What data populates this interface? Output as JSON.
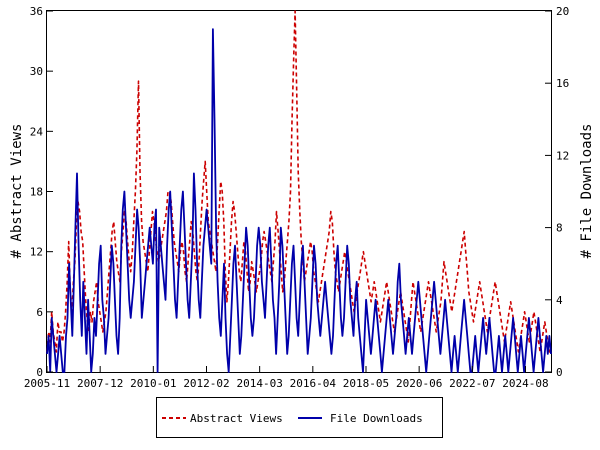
{
  "chart_data": {
    "type": "line",
    "title": "",
    "xlabel": "",
    "ylabel_left": "# Abstract Views",
    "ylabel_right": "# File Downloads",
    "x_tick_labels": [
      "2005-11",
      "2007-12",
      "2010-01",
      "2012-02",
      "2014-03",
      "2016-04",
      "2018-05",
      "2020-06",
      "2022-07",
      "2024-08"
    ],
    "x_range": [
      "2005-11",
      "2025-08"
    ],
    "y_left": {
      "ylim": [
        0,
        36
      ],
      "ticks": [
        0,
        6,
        12,
        18,
        24,
        30,
        36
      ]
    },
    "y_right": {
      "ylim": [
        0,
        20
      ],
      "ticks": [
        0,
        4,
        8,
        12,
        16,
        20
      ]
    },
    "grid": false,
    "legend_placement": "bottom-center",
    "series": [
      {
        "name": "Abstract Views",
        "axis": "left",
        "color": "#cc0000",
        "style": "dashed",
        "values": [
          2,
          4,
          3,
          6,
          4,
          3,
          2,
          5,
          4,
          4,
          3,
          4,
          6,
          9,
          13,
          8,
          6,
          9,
          11,
          15,
          17,
          16,
          14,
          13,
          10,
          7,
          5,
          4,
          6,
          5,
          7,
          8,
          9,
          7,
          6,
          5,
          4,
          5,
          6,
          8,
          10,
          12,
          14,
          15,
          13,
          11,
          10,
          9,
          12,
          14,
          16,
          15,
          13,
          11,
          10,
          12,
          15,
          18,
          22,
          29,
          20,
          15,
          13,
          12,
          11,
          10,
          12,
          14,
          16,
          15,
          13,
          12,
          11,
          12,
          13,
          14,
          15,
          16,
          18,
          18,
          17,
          15,
          13,
          12,
          11,
          10,
          12,
          13,
          12,
          10,
          9,
          11,
          13,
          15,
          14,
          12,
          10,
          9,
          11,
          14,
          17,
          19,
          21,
          18,
          15,
          14,
          13,
          12,
          11,
          10,
          13,
          16,
          19,
          18,
          15,
          10,
          7,
          9,
          12,
          15,
          17,
          16,
          14,
          12,
          10,
          9,
          11,
          13,
          12,
          10,
          8,
          9,
          11,
          10,
          9,
          8,
          9,
          10,
          11,
          13,
          14,
          13,
          12,
          11,
          10,
          9,
          11,
          13,
          16,
          14,
          12,
          10,
          8,
          9,
          11,
          13,
          15,
          18,
          25,
          31,
          36,
          28,
          20,
          16,
          13,
          11,
          9,
          10,
          11,
          12,
          13,
          12,
          10,
          9,
          8,
          7,
          8,
          9,
          10,
          11,
          12,
          13,
          14,
          16,
          15,
          12,
          10,
          9,
          8,
          9,
          10,
          11,
          12,
          11,
          10,
          9,
          8,
          7,
          6,
          7,
          8,
          9,
          10,
          11,
          12,
          11,
          10,
          9,
          8,
          7,
          8,
          9,
          8,
          7,
          6,
          5,
          6,
          7,
          8,
          9,
          8,
          7,
          6,
          5,
          4,
          5,
          6,
          7,
          8,
          7,
          6,
          5,
          4,
          3,
          5,
          7,
          9,
          8,
          7,
          6,
          5,
          4,
          5,
          6,
          7,
          8,
          9,
          8,
          7,
          6,
          5,
          4,
          5,
          6,
          7,
          9,
          11,
          10,
          9,
          8,
          7,
          6,
          7,
          8,
          9,
          10,
          11,
          12,
          13,
          14,
          12,
          10,
          8,
          7,
          6,
          5,
          6,
          7,
          8,
          9,
          8,
          7,
          6,
          5,
          4,
          5,
          6,
          7,
          8,
          9,
          8,
          7,
          6,
          5,
          4,
          3,
          4,
          5,
          6,
          7,
          6,
          5,
          4,
          3,
          2,
          3,
          4,
          5,
          6,
          5,
          4,
          3,
          4,
          5,
          6,
          5,
          4,
          3,
          2,
          3,
          4,
          5,
          4,
          3,
          2,
          2
        ]
      },
      {
        "name": "File Downloads",
        "axis": "right",
        "color": "#0000aa",
        "style": "solid",
        "values": [
          1,
          2,
          0,
          3,
          2,
          1,
          0,
          1,
          2,
          1,
          0,
          0,
          2,
          3,
          6,
          4,
          2,
          5,
          8,
          11,
          7,
          4,
          2,
          5,
          3,
          1,
          4,
          2,
          0,
          1,
          3,
          2,
          4,
          6,
          7,
          4,
          3,
          1,
          2,
          3,
          5,
          7,
          6,
          4,
          2,
          1,
          3,
          7,
          9,
          10,
          8,
          6,
          4,
          3,
          4,
          5,
          7,
          9,
          8,
          6,
          3,
          4,
          5,
          6,
          7,
          8,
          7,
          6,
          8,
          9,
          0,
          8,
          7,
          6,
          5,
          4,
          7,
          9,
          10,
          8,
          6,
          4,
          3,
          5,
          7,
          9,
          10,
          8,
          6,
          4,
          3,
          5,
          7,
          11,
          9,
          6,
          4,
          3,
          5,
          7,
          8,
          9,
          8,
          7,
          6,
          19,
          14,
          8,
          5,
          3,
          2,
          4,
          6,
          3,
          1,
          0,
          2,
          4,
          6,
          7,
          5,
          3,
          1,
          2,
          4,
          6,
          8,
          7,
          5,
          3,
          2,
          3,
          5,
          7,
          8,
          7,
          5,
          4,
          3,
          5,
          7,
          8,
          6,
          4,
          3,
          1,
          3,
          5,
          8,
          7,
          5,
          3,
          1,
          2,
          4,
          6,
          7,
          5,
          3,
          2,
          4,
          6,
          7,
          5,
          3,
          1,
          2,
          3,
          5,
          7,
          6,
          4,
          3,
          2,
          3,
          4,
          5,
          4,
          3,
          2,
          1,
          2,
          4,
          6,
          7,
          5,
          3,
          2,
          3,
          5,
          7,
          6,
          4,
          3,
          2,
          4,
          5,
          3,
          2,
          1,
          0,
          2,
          4,
          3,
          2,
          1,
          2,
          3,
          4,
          3,
          2,
          1,
          0,
          1,
          2,
          3,
          4,
          3,
          2,
          1,
          2,
          3,
          5,
          6,
          4,
          3,
          2,
          1,
          2,
          3,
          2,
          1,
          2,
          3,
          4,
          5,
          4,
          3,
          2,
          1,
          0,
          1,
          2,
          3,
          4,
          5,
          4,
          3,
          2,
          1,
          2,
          3,
          4,
          3,
          2,
          1,
          0,
          1,
          2,
          1,
          0,
          1,
          2,
          3,
          4,
          3,
          2,
          1,
          0,
          0,
          1,
          2,
          1,
          0,
          1,
          2,
          3,
          2,
          1,
          2,
          3,
          2,
          1,
          0,
          0,
          1,
          2,
          1,
          0,
          1,
          2,
          1,
          0,
          1,
          2,
          3,
          2,
          1,
          0,
          1,
          2,
          1,
          0,
          1,
          2,
          3,
          2,
          1,
          0,
          1,
          2,
          3,
          2,
          1,
          0,
          1,
          2,
          1,
          2,
          1
        ]
      }
    ]
  }
}
